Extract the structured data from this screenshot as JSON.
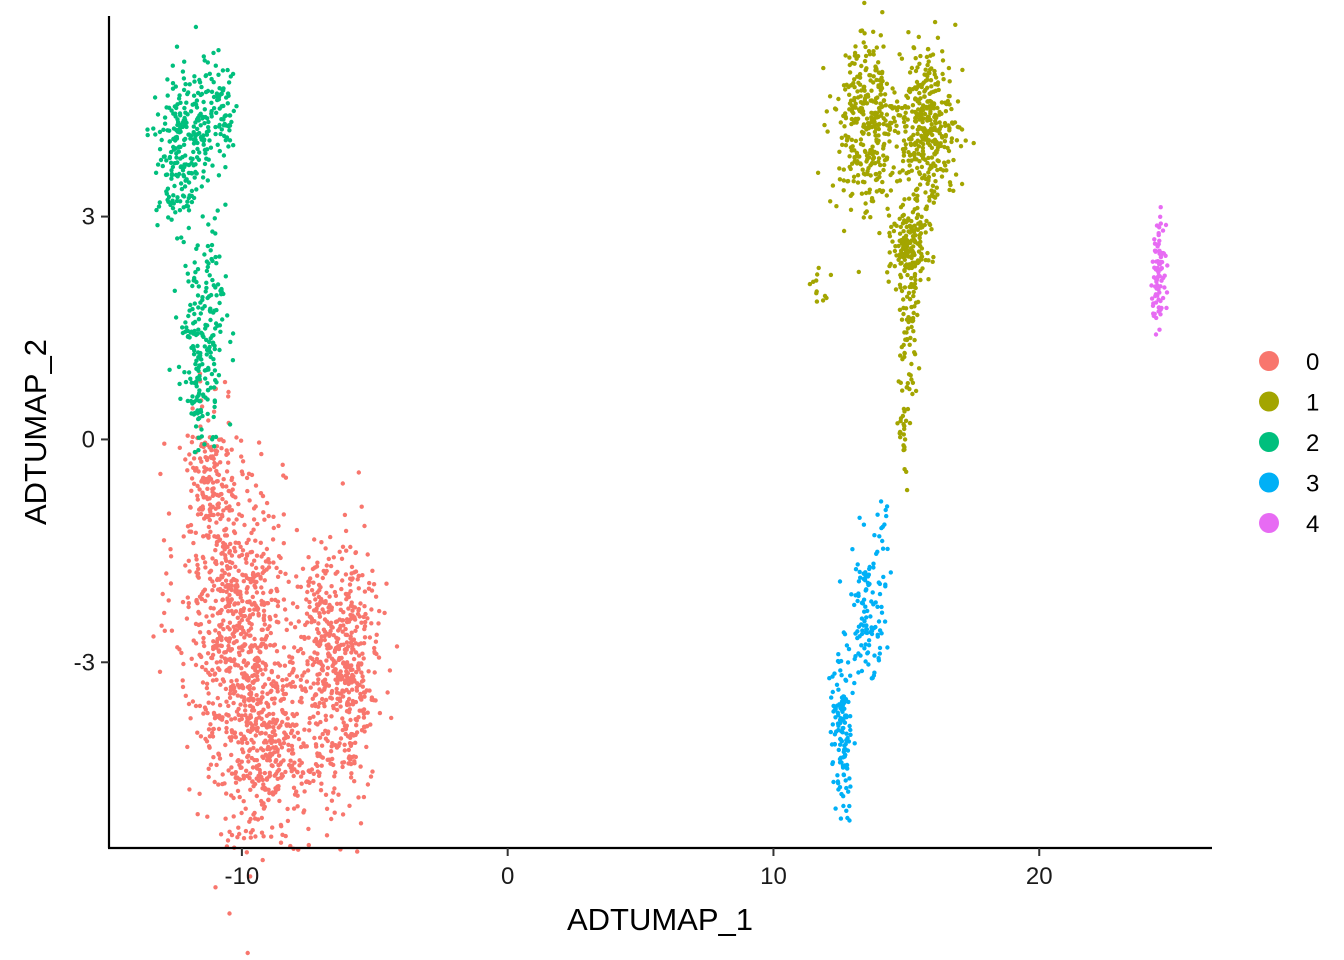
{
  "chart_data": {
    "type": "scatter",
    "title": "",
    "xlabel": "ADTUMAP_1",
    "ylabel": "ADTUMAP_2",
    "xlim": [
      -15,
      26.5
    ],
    "ylim": [
      -5.5,
      5.7
    ],
    "x_ticks": [
      -10,
      0,
      10,
      20
    ],
    "x_tick_labels": [
      "-10",
      "0",
      "10",
      "20"
    ],
    "y_ticks": [
      -3,
      0,
      3
    ],
    "y_tick_labels": [
      "-3",
      "0",
      "3"
    ],
    "grid": false,
    "legend_position": "right",
    "series": [
      {
        "name": "0",
        "color": "#F8766D",
        "clusters": [
          {
            "cx": -10.5,
            "cy": -2.2,
            "sx": 1.0,
            "sy": 1.1,
            "n": 450
          },
          {
            "cx": -9.6,
            "cy": -3.3,
            "sx": 0.9,
            "sy": 1.1,
            "n": 500
          },
          {
            "cx": -8.4,
            "cy": -4.3,
            "sx": 0.9,
            "sy": 0.45,
            "n": 200
          },
          {
            "cx": -6.0,
            "cy": -3.1,
            "sx": 0.6,
            "sy": 0.8,
            "n": 400
          },
          {
            "cx": -7.2,
            "cy": -2.6,
            "sx": 0.55,
            "sy": 0.55,
            "n": 150
          },
          {
            "cx": -11.3,
            "cy": -0.5,
            "sx": 0.45,
            "sy": 0.5,
            "n": 130
          }
        ]
      },
      {
        "name": "1",
        "color": "#A3A500",
        "clusters": [
          {
            "cx": 13.5,
            "cy": 4.2,
            "sx": 0.6,
            "sy": 0.6,
            "n": 350
          },
          {
            "cx": 15.8,
            "cy": 4.2,
            "sx": 0.55,
            "sy": 0.5,
            "n": 380
          },
          {
            "cx": 15.1,
            "cy": 2.6,
            "sx": 0.35,
            "sy": 0.3,
            "n": 180
          },
          {
            "cx": 15.1,
            "cy": 1.5,
            "sx": 0.2,
            "sy": 0.5,
            "n": 60
          },
          {
            "cx": 14.9,
            "cy": 0.4,
            "sx": 0.1,
            "sy": 0.5,
            "n": 30
          },
          {
            "cx": 11.9,
            "cy": 2.1,
            "sx": 0.25,
            "sy": 0.2,
            "n": 12
          }
        ]
      },
      {
        "name": "2",
        "color": "#00BF7D",
        "clusters": [
          {
            "cx": -12.3,
            "cy": 3.9,
            "sx": 0.45,
            "sy": 0.55,
            "n": 230
          },
          {
            "cx": -11.0,
            "cy": 4.4,
            "sx": 0.4,
            "sy": 0.35,
            "n": 110
          },
          {
            "cx": -11.4,
            "cy": 1.5,
            "sx": 0.45,
            "sy": 0.6,
            "n": 190
          },
          {
            "cx": -11.5,
            "cy": 0.5,
            "sx": 0.3,
            "sy": 0.3,
            "n": 40
          }
        ]
      },
      {
        "name": "3",
        "color": "#00B0F6",
        "clusters": [
          {
            "cx": 12.6,
            "cy": -3.9,
            "sx": 0.2,
            "sy": 0.5,
            "n": 130
          },
          {
            "cx": 13.5,
            "cy": -2.3,
            "sx": 0.35,
            "sy": 0.45,
            "n": 110
          },
          {
            "cx": 14.1,
            "cy": -1.3,
            "sx": 0.15,
            "sy": 0.35,
            "n": 18
          }
        ]
      },
      {
        "name": "4",
        "color": "#E76BF3",
        "clusters": [
          {
            "cx": 24.5,
            "cy": 2.3,
            "sx": 0.12,
            "sy": 0.35,
            "n": 90
          }
        ]
      }
    ]
  },
  "legend": {
    "items": [
      {
        "label": "0",
        "color": "#F8766D"
      },
      {
        "label": "1",
        "color": "#A3A500"
      },
      {
        "label": "2",
        "color": "#00BF7D"
      },
      {
        "label": "3",
        "color": "#00B0F6"
      },
      {
        "label": "4",
        "color": "#E76BF3"
      }
    ]
  }
}
